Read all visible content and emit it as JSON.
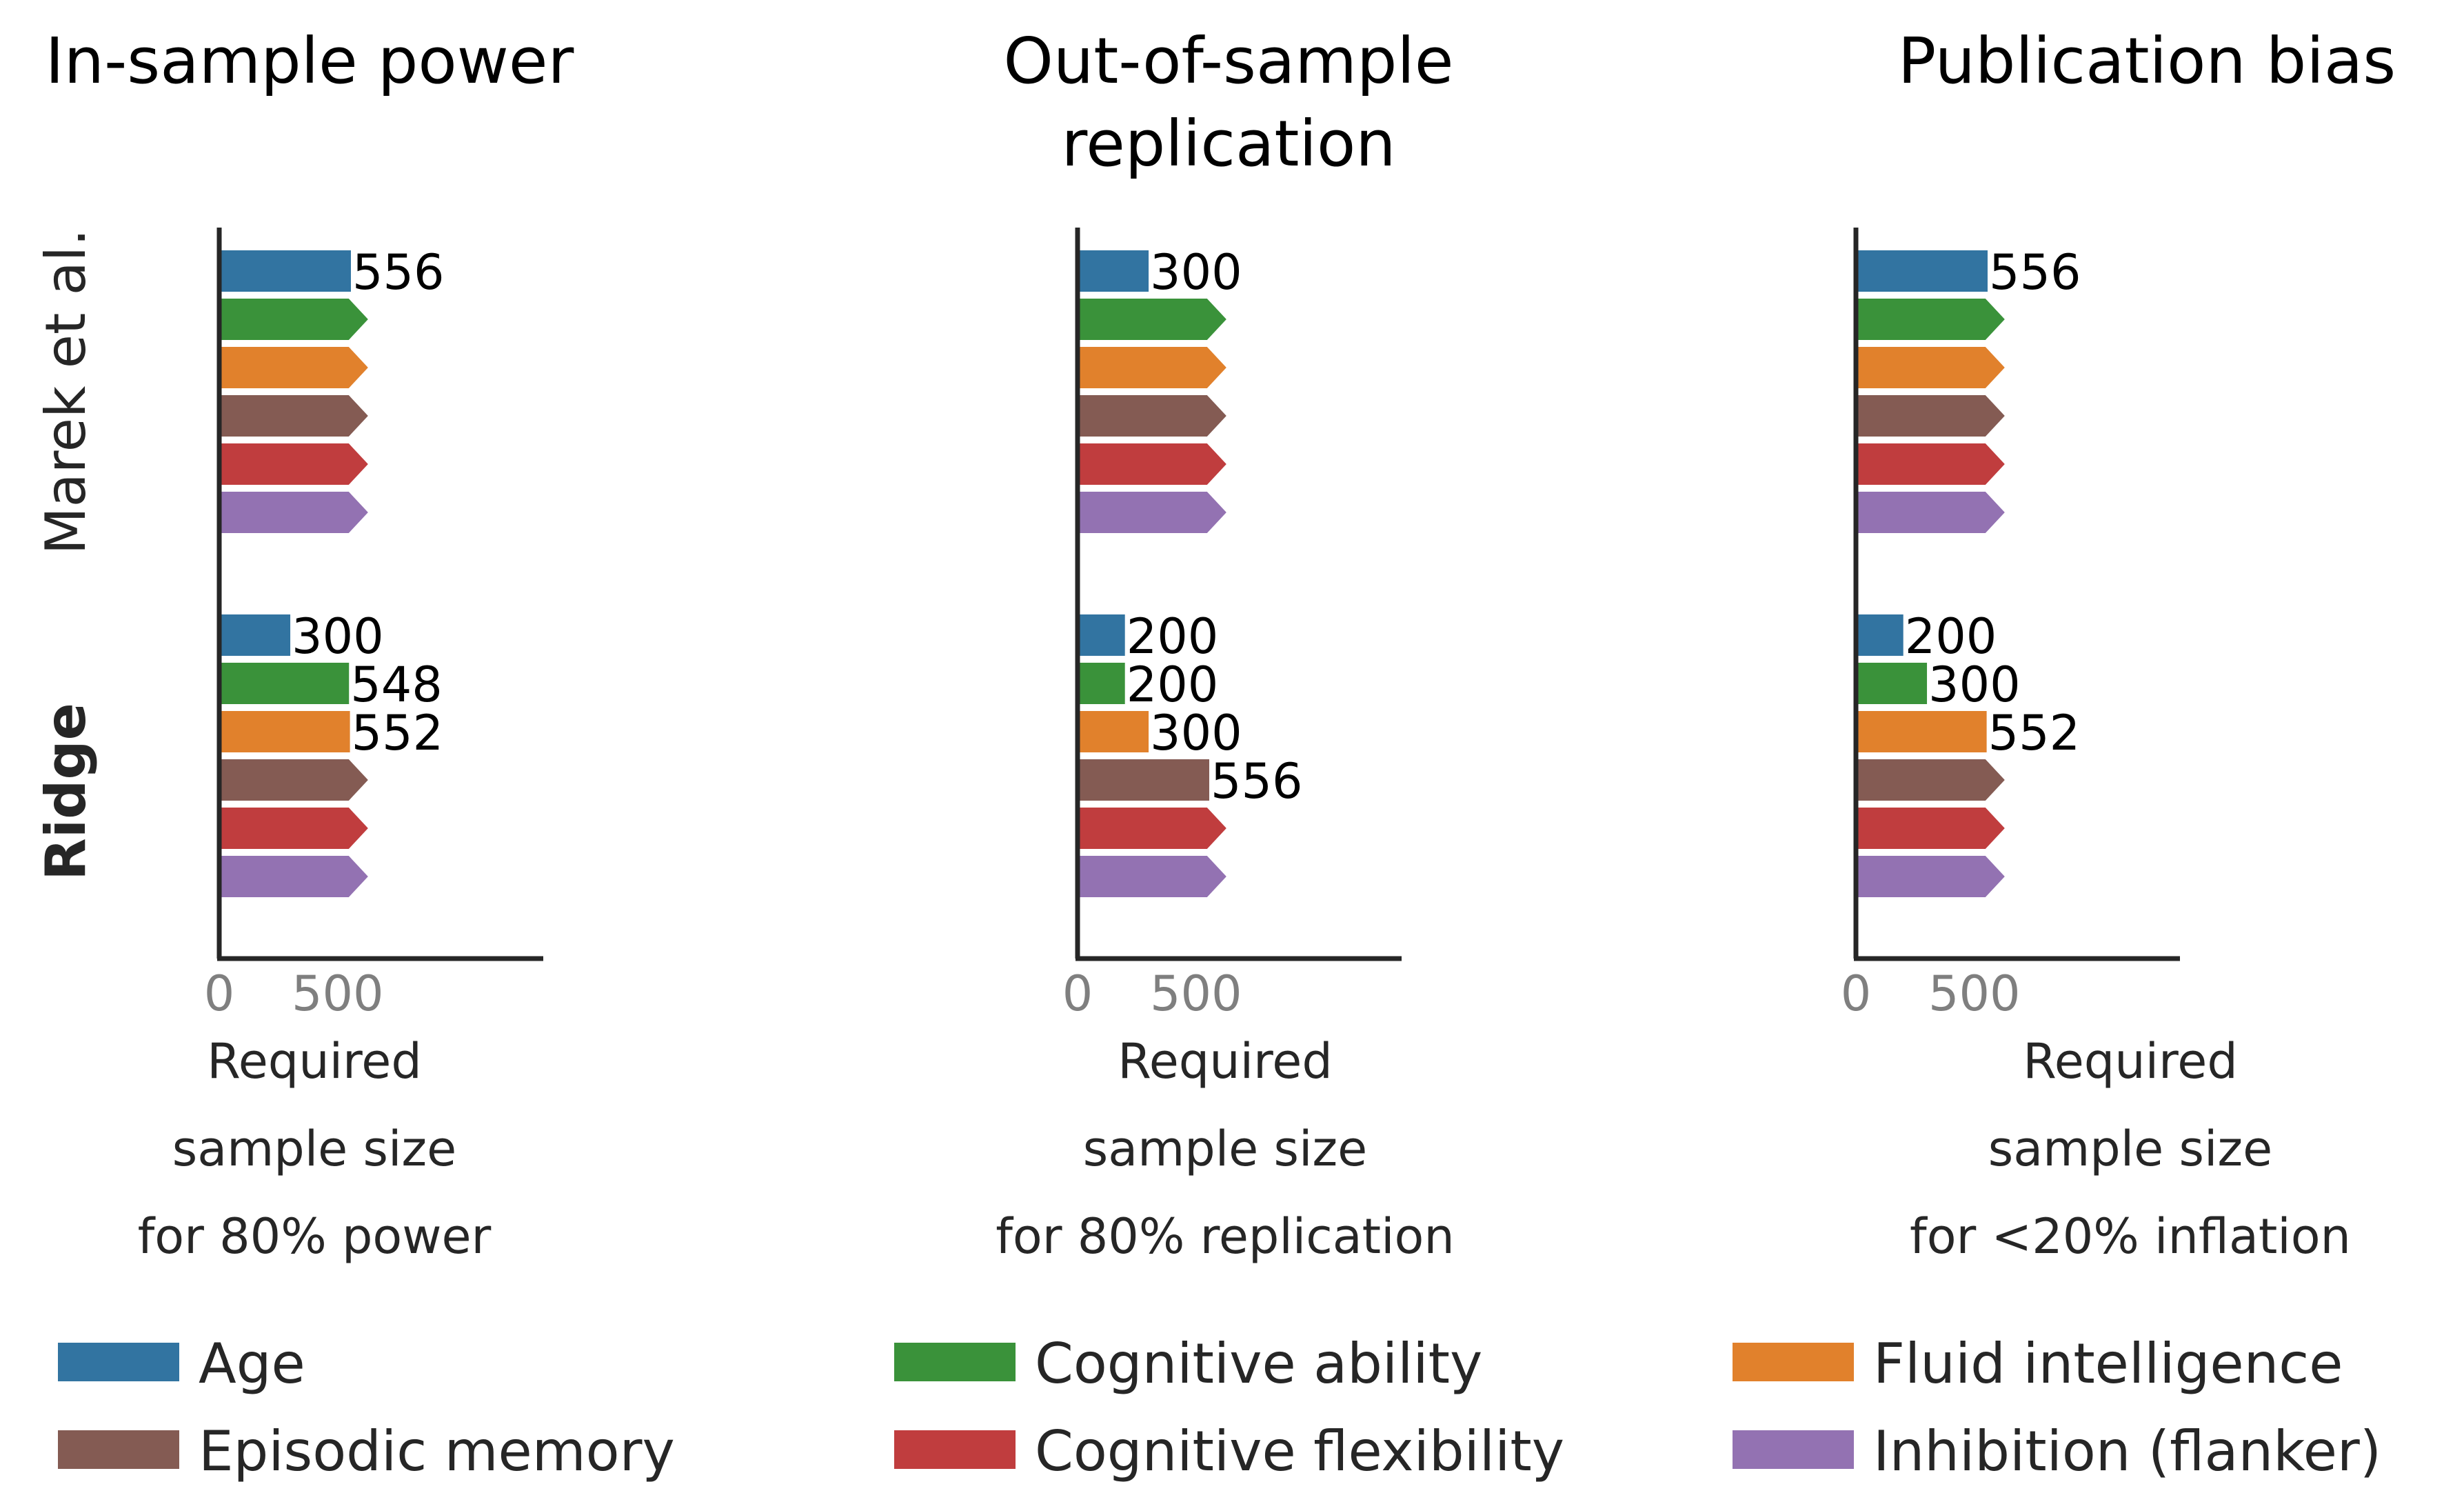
{
  "chart_data": {
    "type": "bar",
    "orientation": "horizontal",
    "groups": [
      {
        "label": "Marek et al.",
        "bold": false
      },
      {
        "label": "Ridge",
        "bold": true
      }
    ],
    "series": [
      {
        "name": "Age",
        "color": "#3274a1"
      },
      {
        "name": "Cognitive ability",
        "color": "#3a923a"
      },
      {
        "name": "Fluid intelligence",
        "color": "#e1812c"
      },
      {
        "name": "Episodic memory",
        "color": "#845b53"
      },
      {
        "name": "Cognitive flexibility",
        "color": "#c03d3e"
      },
      {
        "name": "Inhibition (flanker)",
        "color": "#9372b2"
      }
    ],
    "xlim": [
      0,
      660
    ],
    "xticks": [
      0,
      500
    ],
    "overflow_note": "bars ending in an arrow exceed the maximum sample size shown",
    "panels": [
      {
        "title_lines": [
          "In-sample power"
        ],
        "xlabel_lines": [
          "Required",
          "sample size",
          "for 80% power"
        ],
        "values": [
          [
            556,
            null,
            null,
            null,
            null,
            null
          ],
          [
            300,
            548,
            552,
            null,
            null,
            null
          ]
        ],
        "labels": [
          [
            "556",
            "",
            "",
            "",
            "",
            ""
          ],
          [
            "300",
            "548",
            "552",
            "",
            "",
            ""
          ]
        ]
      },
      {
        "title_lines": [
          "Out-of-sample",
          "replication"
        ],
        "xlabel_lines": [
          "Required",
          "sample size",
          "for 80% replication"
        ],
        "values": [
          [
            300,
            null,
            null,
            null,
            null,
            null
          ],
          [
            200,
            200,
            300,
            556,
            null,
            null
          ]
        ],
        "labels": [
          [
            "300",
            "",
            "",
            "",
            "",
            ""
          ],
          [
            "200",
            "200",
            "300",
            "556",
            "",
            ""
          ]
        ]
      },
      {
        "title_lines": [
          "Publication bias"
        ],
        "xlabel_lines": [
          "Required",
          "sample size",
          "for <20% inflation"
        ],
        "values": [
          [
            556,
            null,
            null,
            null,
            null,
            null
          ],
          [
            200,
            300,
            552,
            null,
            null,
            null
          ]
        ],
        "labels": [
          [
            "556",
            "",
            "",
            "",
            "",
            ""
          ],
          [
            "200",
            "300",
            " 552",
            "",
            "",
            ""
          ]
        ]
      }
    ],
    "legend": {
      "placement": "bottom",
      "columns": 3,
      "order": [
        "Age",
        "Episodic memory",
        "Cognitive ability",
        "Cognitive flexibility",
        "Fluid intelligence",
        "Inhibition (flanker)"
      ]
    }
  }
}
